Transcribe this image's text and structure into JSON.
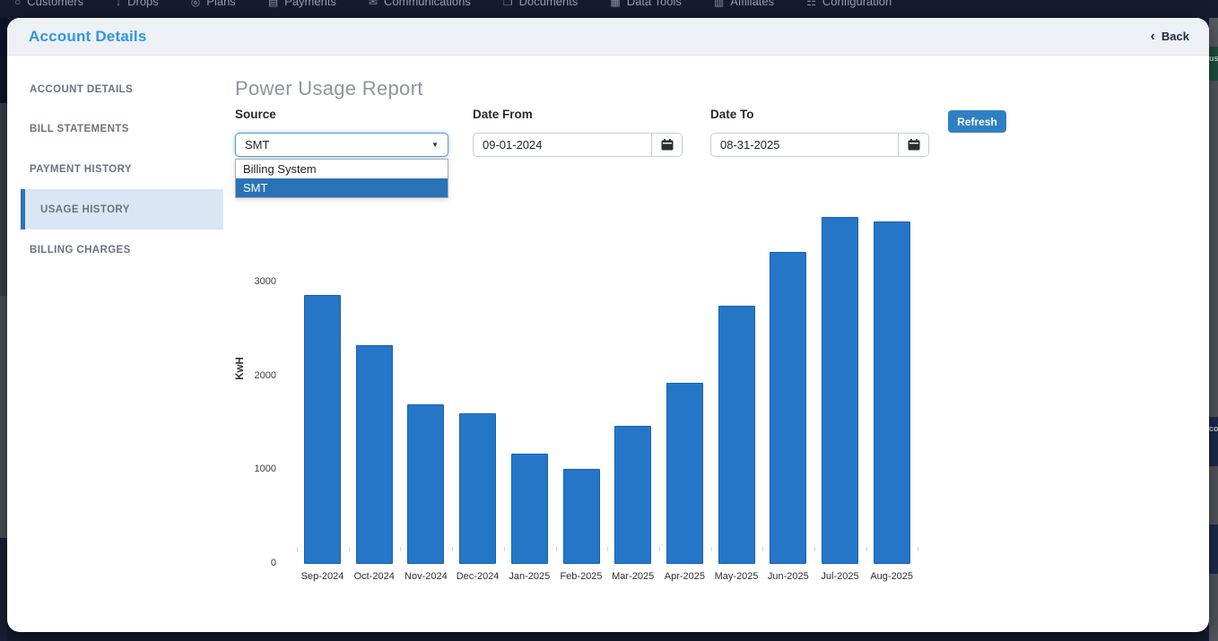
{
  "nav": {
    "items": [
      {
        "label": "Customers",
        "icon": "person-icon"
      },
      {
        "label": "Drops",
        "icon": "drop-arrow-icon"
      },
      {
        "label": "Plans",
        "icon": "circle-dot-icon"
      },
      {
        "label": "Payments",
        "icon": "card-icon"
      },
      {
        "label": "Communications",
        "icon": "envelope-icon"
      },
      {
        "label": "Documents",
        "icon": "document-icon"
      },
      {
        "label": "Data Tools",
        "icon": "database-icon"
      },
      {
        "label": "Affiliates",
        "icon": "building-icon"
      },
      {
        "label": "Configuration",
        "icon": "sliders-icon"
      }
    ]
  },
  "modal": {
    "title": "Account Details",
    "back_label": "Back",
    "sidebar": {
      "items": [
        {
          "label": "ACCOUNT DETAILS",
          "active": false
        },
        {
          "label": "BILL STATEMENTS",
          "active": false
        },
        {
          "label": "PAYMENT HISTORY",
          "active": false
        },
        {
          "label": "USAGE HISTORY",
          "active": true
        },
        {
          "label": "BILLING CHARGES",
          "active": false
        }
      ]
    },
    "report": {
      "title": "Power Usage Report",
      "source": {
        "label": "Source",
        "value": "SMT",
        "options": [
          "Billing System",
          "SMT"
        ]
      },
      "date_from": {
        "label": "Date From",
        "value": "09-01-2024"
      },
      "date_to": {
        "label": "Date To",
        "value": "08-31-2025"
      },
      "refresh_label": "Refresh"
    }
  },
  "chart_data": {
    "type": "bar",
    "categories": [
      "Sep-2024",
      "Oct-2024",
      "Nov-2024",
      "Dec-2024",
      "Jan-2025",
      "Feb-2025",
      "Mar-2025",
      "Apr-2025",
      "May-2025",
      "Jun-2025",
      "Jul-2025",
      "Aug-2025"
    ],
    "values": [
      2870,
      2330,
      1700,
      1600,
      1175,
      1010,
      1470,
      1930,
      2750,
      3320,
      3700,
      3650
    ],
    "title": "",
    "xlabel": "",
    "ylabel": "KwH",
    "yticks": [
      0,
      1000,
      2000,
      3000
    ],
    "ylim": [
      0,
      4000
    ],
    "grid": false,
    "legend": false,
    "bar_color": "#2676c8",
    "bar_border_color": "#1463b2"
  },
  "background": {
    "right_edge_badge_text": "us",
    "right_edge_fragment": "co"
  },
  "colors": {
    "nav_bg": "#161b31",
    "modal_header_bg": "#edf1f6",
    "title_blue": "#2f96e3",
    "active_item_bg": "#d9e7f5",
    "active_item_border": "#2d72b5",
    "selected_option_bg": "#2a72b8",
    "refresh_bg": "#2f80c3",
    "bar_fill": "#2676c8"
  }
}
